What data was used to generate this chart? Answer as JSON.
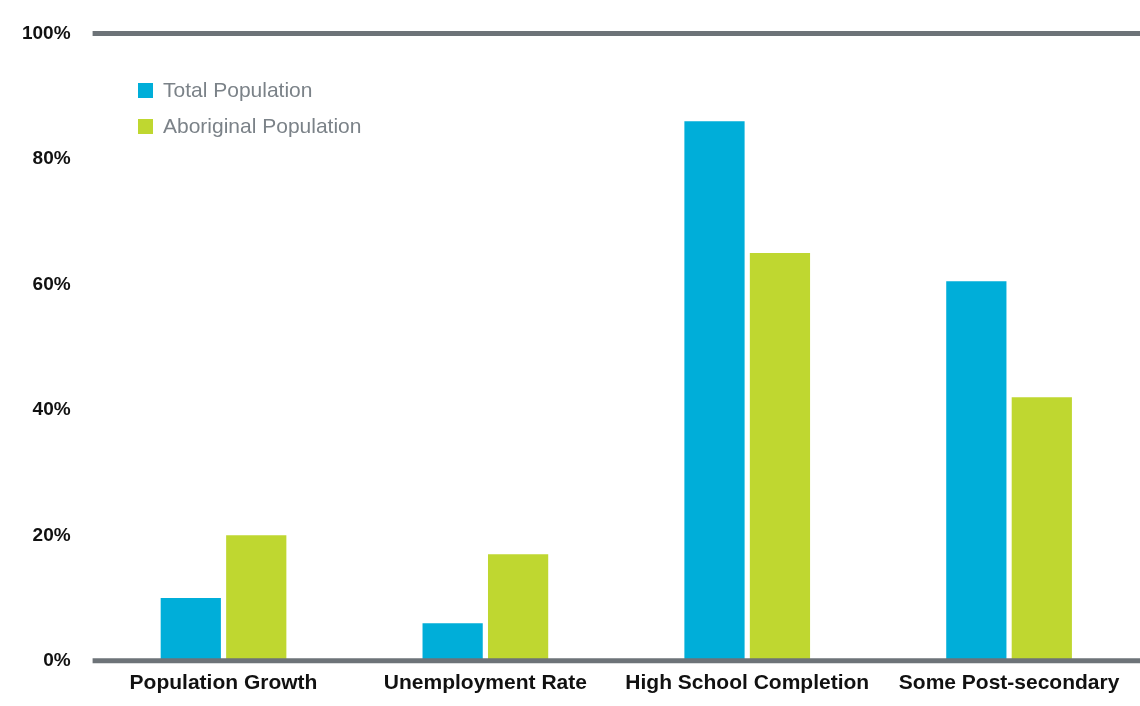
{
  "chart_data": {
    "type": "bar",
    "categories": [
      "Population Growth",
      "Unemployment Rate",
      "High School Completion",
      "Some Post-secondary"
    ],
    "series": [
      {
        "name": "Total Population",
        "color": "#00aed9",
        "values": [
          10,
          6,
          86,
          60.5
        ]
      },
      {
        "name": "Aboriginal Population",
        "color": "#bfd730",
        "values": [
          20,
          17,
          65,
          42
        ]
      }
    ],
    "ylim": [
      0,
      100
    ],
    "yticks": [
      {
        "value": 0,
        "label": "0%"
      },
      {
        "value": 20,
        "label": "20%"
      },
      {
        "value": 40,
        "label": "40%"
      },
      {
        "value": 60,
        "label": "60%"
      },
      {
        "value": 80,
        "label": "80%"
      },
      {
        "value": 100,
        "label": "100%"
      }
    ],
    "grid": false,
    "legend": "top left"
  }
}
